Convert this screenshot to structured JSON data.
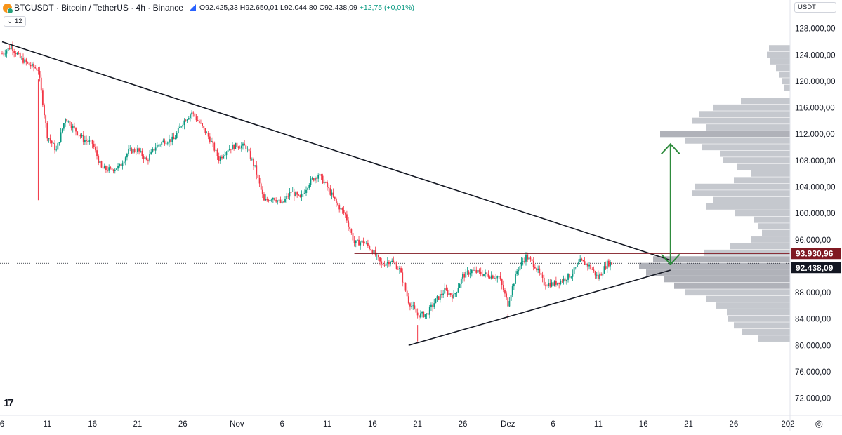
{
  "header": {
    "title": "BTCUSDT · Bitcoin / TetherUS · 4h · Binance",
    "ohlc_o": "O92.425,33",
    "ohlc_h": "H92.650,01",
    "ohlc_l": "L92.044,80",
    "ohlc_c": "C92.438,09",
    "change": "+12,75 (+0,01%)"
  },
  "indicator_toggle": {
    "label": "12"
  },
  "currency_selector": {
    "label": "USDT"
  },
  "colors": {
    "up": "#089981",
    "down": "#f23645",
    "line": "#131722",
    "arrow": "#2e8b3d",
    "resistance": "#801922",
    "current_label": "#131722",
    "volume_profile": "#b2b5be"
  },
  "chart_data": {
    "type": "candlestick",
    "title": "",
    "xlabel": "",
    "ylabel": "",
    "y_ticks": [
      128000,
      124000,
      120000,
      116000,
      112000,
      108000,
      104000,
      100000,
      96000,
      92000,
      88000,
      84000,
      80000,
      76000,
      72000
    ],
    "y_tick_labels": [
      "128.000,00",
      "124.000,00",
      "120.000,00",
      "116.000,00",
      "112.000,00",
      "108.000,00",
      "104.000,00",
      "100.000,00",
      "96.000,00",
      "92.000,00",
      "88.000,00",
      "84.000,00",
      "80.000,00",
      "76.000,00",
      "72.000,00"
    ],
    "ylim": [
      69400,
      130200
    ],
    "x_tick_labels": [
      "6",
      "11",
      "16",
      "21",
      "26",
      "Nov",
      "6",
      "11",
      "16",
      "21",
      "26",
      "Dez",
      "6",
      "11",
      "16",
      "21",
      "26",
      "202"
    ],
    "xlim": [
      "2025-10-06",
      "2026-01-01"
    ],
    "x_ticks_dates": [
      "2025-10-06",
      "2025-10-11",
      "2025-10-16",
      "2025-10-21",
      "2025-10-26",
      "2025-11-01",
      "2025-11-06",
      "2025-11-11",
      "2025-11-16",
      "2025-11-21",
      "2025-11-26",
      "2025-12-01",
      "2025-12-06",
      "2025-12-11",
      "2025-12-16",
      "2025-12-21",
      "2025-12-26",
      "2026-01-01"
    ],
    "price_path": [
      [
        "2025-10-06",
        124200
      ],
      [
        "2025-10-07",
        125300
      ],
      [
        "2025-10-08",
        123500
      ],
      [
        "2025-10-09",
        122500
      ],
      [
        "2025-10-10",
        121800
      ],
      [
        "2025-10-11",
        111800
      ],
      [
        "2025-10-12",
        109500
      ],
      [
        "2025-10-13",
        114500
      ],
      [
        "2025-10-14",
        112800
      ],
      [
        "2025-10-15",
        111200
      ],
      [
        "2025-10-16",
        110600
      ],
      [
        "2025-10-17",
        106800
      ],
      [
        "2025-10-18",
        106600
      ],
      [
        "2025-10-19",
        107100
      ],
      [
        "2025-10-20",
        109400
      ],
      [
        "2025-10-21",
        109600
      ],
      [
        "2025-10-22",
        108000
      ],
      [
        "2025-10-23",
        110100
      ],
      [
        "2025-10-24",
        111000
      ],
      [
        "2025-10-25",
        111200
      ],
      [
        "2025-10-26",
        113800
      ],
      [
        "2025-10-27",
        115300
      ],
      [
        "2025-10-28",
        113400
      ],
      [
        "2025-10-29",
        111300
      ],
      [
        "2025-10-30",
        108200
      ],
      [
        "2025-10-31",
        109800
      ],
      [
        "2025-11-01",
        110300
      ],
      [
        "2025-11-02",
        110100
      ],
      [
        "2025-11-03",
        106900
      ],
      [
        "2025-11-04",
        101800
      ],
      [
        "2025-11-05",
        102500
      ],
      [
        "2025-11-06",
        101400
      ],
      [
        "2025-11-07",
        103300
      ],
      [
        "2025-11-08",
        102200
      ],
      [
        "2025-11-09",
        104700
      ],
      [
        "2025-11-10",
        105900
      ],
      [
        "2025-11-11",
        104000
      ],
      [
        "2025-11-12",
        101500
      ],
      [
        "2025-11-13",
        99800
      ],
      [
        "2025-11-14",
        95500
      ],
      [
        "2025-11-15",
        95700
      ],
      [
        "2025-11-16",
        94400
      ],
      [
        "2025-11-17",
        92200
      ],
      [
        "2025-11-18",
        92900
      ],
      [
        "2025-11-19",
        91500
      ],
      [
        "2025-11-20",
        86700
      ],
      [
        "2025-11-21",
        84600
      ],
      [
        "2025-11-22",
        84700
      ],
      [
        "2025-11-23",
        86800
      ],
      [
        "2025-11-24",
        88300
      ],
      [
        "2025-11-25",
        87400
      ],
      [
        "2025-11-26",
        90500
      ],
      [
        "2025-11-27",
        91300
      ],
      [
        "2025-11-28",
        90900
      ],
      [
        "2025-11-29",
        90600
      ],
      [
        "2025-11-30",
        90400
      ],
      [
        "2025-12-01",
        86300
      ],
      [
        "2025-12-02",
        91300
      ],
      [
        "2025-12-03",
        93500
      ],
      [
        "2025-12-04",
        92100
      ],
      [
        "2025-12-05",
        89400
      ],
      [
        "2025-12-06",
        89300
      ],
      [
        "2025-12-07",
        89900
      ],
      [
        "2025-12-08",
        90700
      ],
      [
        "2025-12-09",
        92700
      ],
      [
        "2025-12-10",
        92100
      ],
      [
        "2025-12-11",
        90200
      ],
      [
        "2025-12-12",
        92438
      ]
    ],
    "spike_lows": [
      [
        "2025-10-10",
        102000
      ],
      [
        "2025-11-21",
        80600
      ],
      [
        "2025-12-01",
        84000
      ]
    ],
    "trendlines": [
      {
        "name": "descending-resistance",
        "from": [
          "2025-10-06",
          126000
        ],
        "to": [
          "2025-12-19",
          92900
        ]
      },
      {
        "name": "ascending-support",
        "from": [
          "2025-11-20",
          80000
        ],
        "to": [
          "2025-12-19",
          91400
        ]
      },
      {
        "name": "horizontal-resistance",
        "from": [
          "2025-11-14",
          93930.96
        ],
        "to": [
          "2026-01-01",
          93930.96
        ]
      }
    ],
    "target_arrow": {
      "x": "2025-12-19",
      "from": 92300,
      "to": 110500
    },
    "price_labels": [
      {
        "name": "resistance-level",
        "value": 93930.96,
        "label": "93.930,96"
      },
      {
        "name": "current-price",
        "value": 92438.09,
        "label": "92.438,09"
      }
    ],
    "volume_profile": [
      [
        125000,
        30
      ],
      [
        124000,
        33
      ],
      [
        123000,
        28
      ],
      [
        122000,
        20
      ],
      [
        121000,
        15
      ],
      [
        120000,
        12
      ],
      [
        119000,
        9
      ],
      [
        117000,
        70
      ],
      [
        116000,
        110
      ],
      [
        115000,
        130
      ],
      [
        114000,
        140
      ],
      [
        113000,
        120
      ],
      [
        112000,
        185
      ],
      [
        111000,
        150
      ],
      [
        110000,
        125
      ],
      [
        109000,
        100
      ],
      [
        108000,
        95
      ],
      [
        107000,
        75
      ],
      [
        106000,
        55
      ],
      [
        105000,
        80
      ],
      [
        104000,
        135
      ],
      [
        103000,
        140
      ],
      [
        102000,
        110
      ],
      [
        101000,
        120
      ],
      [
        100000,
        78
      ],
      [
        99000,
        52
      ],
      [
        98000,
        45
      ],
      [
        97000,
        40
      ],
      [
        96000,
        55
      ],
      [
        95000,
        85
      ],
      [
        94000,
        122
      ],
      [
        93000,
        195
      ],
      [
        92000,
        215
      ],
      [
        91000,
        205
      ],
      [
        90000,
        180
      ],
      [
        89000,
        165
      ],
      [
        88000,
        150
      ],
      [
        87000,
        120
      ],
      [
        86000,
        105
      ],
      [
        85000,
        90
      ],
      [
        84000,
        88
      ],
      [
        83000,
        80
      ],
      [
        82000,
        68
      ],
      [
        81000,
        45
      ]
    ]
  }
}
